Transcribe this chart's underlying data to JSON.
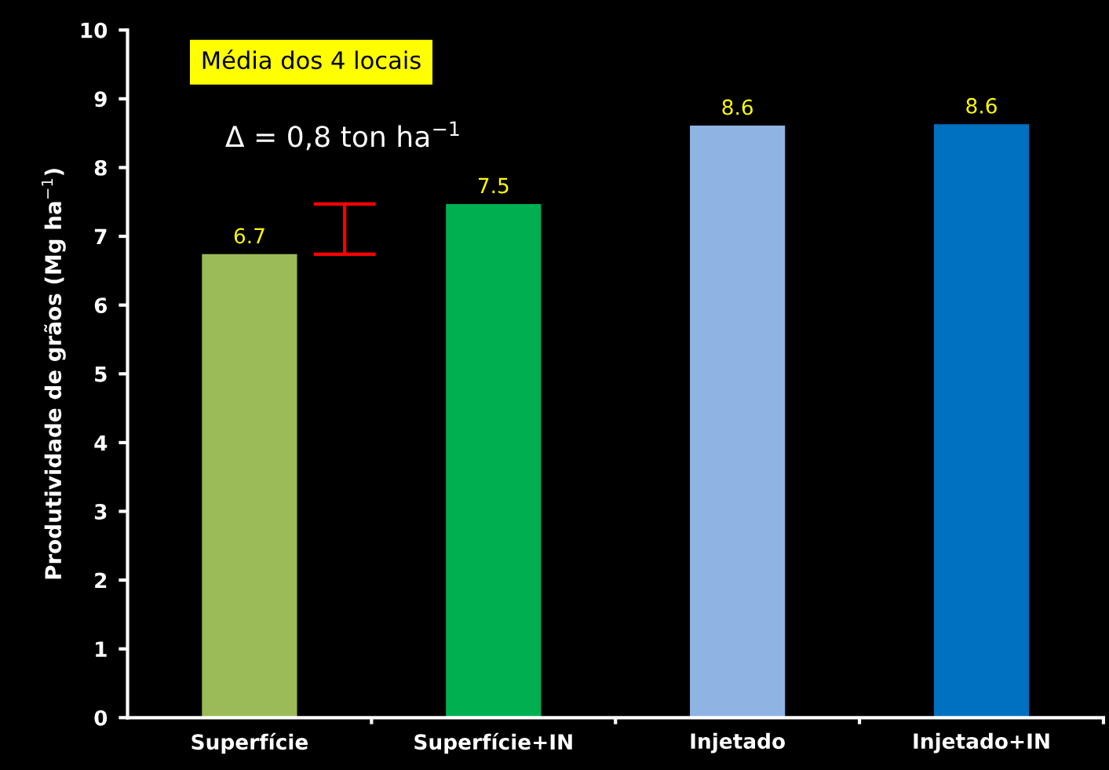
{
  "chart_data": {
    "type": "bar",
    "categories": [
      "Superfície",
      "Superfície+IN",
      "Injetado",
      "Injetado+IN"
    ],
    "values": [
      6.74,
      7.47,
      8.61,
      8.63
    ],
    "colors": [
      "#9bbb59",
      "#00b050",
      "#8eb4e3",
      "#0070c0"
    ],
    "value_labels": [
      "6.7",
      "7.5",
      "8.6",
      "8.6"
    ],
    "ylabel": "Produtividade de grãos (Mg ha$^{−1}$)",
    "ylim": [
      0,
      10
    ],
    "yticks": [
      0,
      1,
      2,
      3,
      4,
      5,
      6,
      7,
      8,
      9,
      10
    ],
    "annotations": [
      "Média dos 4 locais",
      "Δ = 0,8 ton ha$^{−1}$"
    ],
    "grid": false,
    "legend": false
  }
}
